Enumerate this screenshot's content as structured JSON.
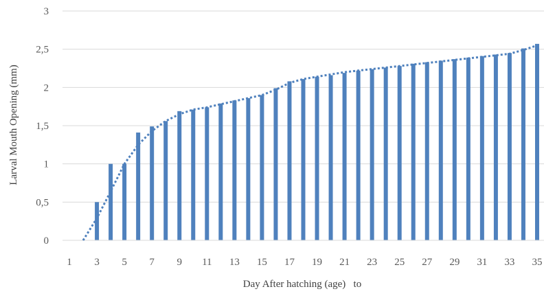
{
  "chart_data": {
    "type": "bar",
    "title": "",
    "xlabel": "Day After hatching (age)   to",
    "ylabel": "Larval Mouth Opening (mm)",
    "ylim": [
      0,
      3
    ],
    "yticks": [
      "0",
      "0,5",
      "1",
      "1,5",
      "2",
      "2,5",
      "3"
    ],
    "categories": [
      "1",
      "2",
      "3",
      "4",
      "5",
      "6",
      "7",
      "8",
      "9",
      "10",
      "11",
      "12",
      "13",
      "14",
      "15",
      "16",
      "17",
      "18",
      "19",
      "20",
      "21",
      "22",
      "23",
      "24",
      "25",
      "26",
      "27",
      "28",
      "29",
      "30",
      "31",
      "32",
      "33",
      "34",
      "35"
    ],
    "visible_category_labels": [
      "1",
      "3",
      "5",
      "7",
      "9",
      "11",
      "13",
      "15",
      "17",
      "19",
      "21",
      "23",
      "25",
      "27",
      "29",
      "31",
      "33",
      "35"
    ],
    "series": [
      {
        "type": "bar",
        "color": "#4f81bd",
        "values": [
          0,
          0,
          0.5,
          1.0,
          1.0,
          1.41,
          1.49,
          1.56,
          1.69,
          1.71,
          1.74,
          1.79,
          1.83,
          1.86,
          1.9,
          1.99,
          2.08,
          2.11,
          2.14,
          2.16,
          2.19,
          2.22,
          2.24,
          2.26,
          2.28,
          2.31,
          2.33,
          2.35,
          2.37,
          2.39,
          2.41,
          2.43,
          2.45,
          2.51,
          2.57
        ]
      },
      {
        "type": "trendline",
        "style": "dotted",
        "color": "#4f81bd",
        "values": [
          null,
          0.0,
          0.29,
          0.64,
          1.0,
          1.25,
          1.43,
          1.56,
          1.65,
          1.71,
          1.74,
          1.78,
          1.82,
          1.86,
          1.9,
          1.97,
          2.06,
          2.11,
          2.14,
          2.17,
          2.2,
          2.22,
          2.24,
          2.26,
          2.28,
          2.3,
          2.32,
          2.34,
          2.36,
          2.38,
          2.4,
          2.42,
          2.44,
          2.49,
          2.55
        ]
      }
    ],
    "grid": true,
    "legend": "none"
  }
}
